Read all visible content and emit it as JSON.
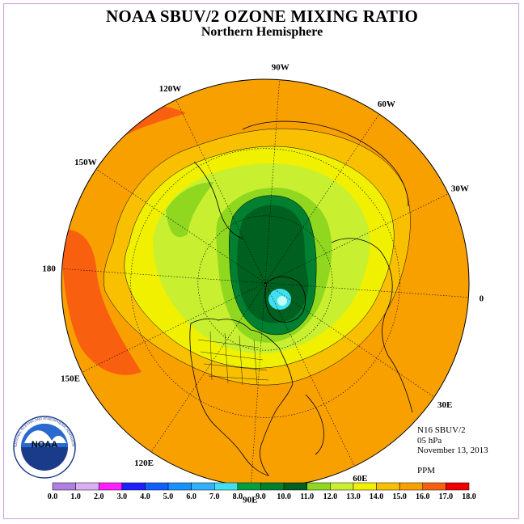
{
  "title": "NOAA SBUV/2 OZONE MIXING RATIO",
  "subtitle": "Northern Hemisphere",
  "info": {
    "instrument": "N16 SBUV/2",
    "level": "05 hPa",
    "date": "November 13, 2013",
    "units": "PPM"
  },
  "logo": {
    "text": "NOAA",
    "ring_text": "NATIONAL OCEANIC AND ATMOSPHERIC ADMINISTRATION • U.S. DEPARTMENT OF COMMERCE"
  },
  "longitude_labels": [
    {
      "text": "90E",
      "lon": 90
    },
    {
      "text": "60E",
      "lon": 60
    },
    {
      "text": "30E",
      "lon": 30
    },
    {
      "text": "0",
      "lon": 0
    },
    {
      "text": "30W",
      "lon": -30
    },
    {
      "text": "60W",
      "lon": -60
    },
    {
      "text": "90W",
      "lon": -90
    },
    {
      "text": "120W",
      "lon": -120
    },
    {
      "text": "150W",
      "lon": -150
    },
    {
      "text": "180",
      "lon": 180
    },
    {
      "text": "150E",
      "lon": 150
    },
    {
      "text": "120E",
      "lon": 120
    }
  ],
  "colorbar": {
    "ticks": [
      "0.0",
      "1.0",
      "2.0",
      "3.0",
      "4.0",
      "5.0",
      "6.0",
      "7.0",
      "8.0",
      "9.0",
      "10.0",
      "11.0",
      "12.0",
      "13.0",
      "14.0",
      "15.0",
      "16.0",
      "17.0",
      "18.0"
    ],
    "colors": [
      "#b080e0",
      "#d8b0f0",
      "#ff20ff",
      "#2020ff",
      "#1060ff",
      "#1890ff",
      "#30b0ff",
      "#40e0f0",
      "#00a040",
      "#008030",
      "#006020",
      "#90d820",
      "#c8f030",
      "#f0f000",
      "#f8c000",
      "#f8a000",
      "#f86010",
      "#f00000",
      "#8a5a3c"
    ]
  },
  "chart_data": {
    "type": "map",
    "projection": "north polar stereographic",
    "variable": "ozone mixing ratio",
    "units": "PPM",
    "level": "05 hPa",
    "date": "November 13, 2013",
    "value_range": [
      0.0,
      18.0
    ],
    "contour_interval": 1.0
  }
}
